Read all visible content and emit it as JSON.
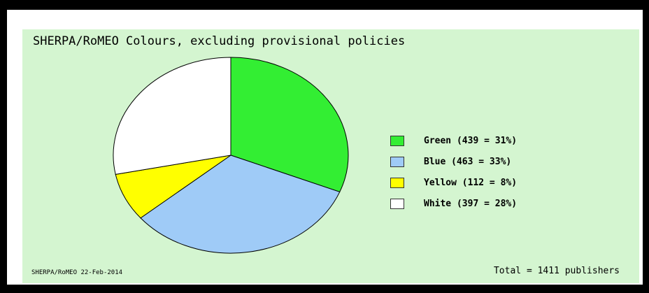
{
  "title": "SHERPA/RoMEO Colours, excluding provisional policies",
  "footer_left": "SHERPA/RoMEO 22-Feb-2014",
  "footer_right": "Total = 1411 publishers",
  "chart_data": {
    "type": "pie",
    "title": "SHERPA/RoMEO Colours, excluding provisional policies",
    "total": 1411,
    "slices": [
      {
        "name": "Green",
        "value": 439,
        "percent": 31,
        "color": "#33ee33",
        "label": "Green (439 = 31%)"
      },
      {
        "name": "Blue",
        "value": 463,
        "percent": 33,
        "color": "#9fcbf7",
        "label": "Blue (463 = 33%)"
      },
      {
        "name": "Yellow",
        "value": 112,
        "percent": 8,
        "color": "#ffff00",
        "label": "Yellow (112 = 8%)"
      },
      {
        "name": "White",
        "value": 397,
        "percent": 28,
        "color": "#ffffff",
        "label": "White (397 = 28%)"
      }
    ],
    "legend_position": "right"
  }
}
